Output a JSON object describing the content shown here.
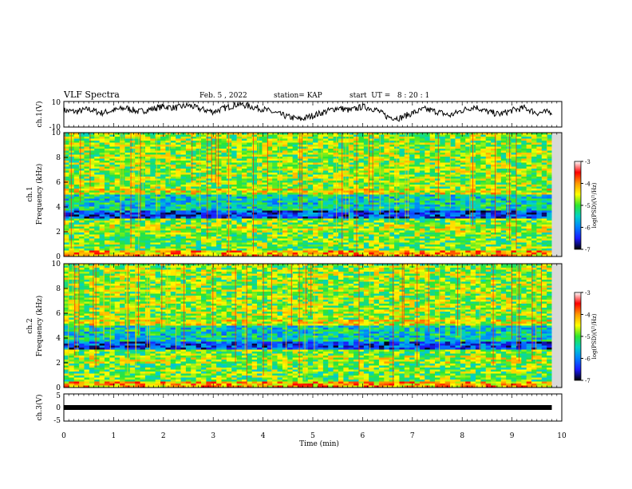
{
  "header": {
    "title": "VLF Spectra",
    "date": "Feb. 5 , 2022",
    "station": "station= KAP",
    "start": "start  UT =   8 : 20 : 1"
  },
  "colors": {
    "colormap": [
      "#000000",
      "#1a1aff",
      "#0080ff",
      "#00d2c8",
      "#2ee62e",
      "#ffff00",
      "#ff9900",
      "#ff0000",
      "#ffffff"
    ],
    "trace": "#000000"
  },
  "chart_data": [
    {
      "type": "line",
      "ylabel": "ch.1(V)",
      "ylim": [
        -10,
        10
      ],
      "yticks": [
        "10",
        "-10"
      ],
      "xlim": [
        0,
        10
      ],
      "series": [
        {
          "x": [
            0,
            0.25,
            0.5,
            0.75,
            1,
            1.25,
            1.5,
            1.75,
            2,
            2.25,
            2.5,
            2.75,
            3,
            3.25,
            3.5,
            3.75,
            4,
            4.25,
            4.5,
            4.75,
            5,
            5.25,
            5.5,
            5.75,
            6,
            6.25,
            6.5,
            6.75,
            7,
            7.25,
            7.5,
            7.75,
            8,
            8.25,
            8.5,
            8.75,
            9,
            9.25,
            9.5,
            9.8
          ],
          "values": [
            3,
            2,
            4,
            1,
            3,
            5,
            2,
            4,
            6,
            5,
            7,
            4,
            2,
            5,
            8,
            6,
            4,
            1,
            -2,
            -4,
            -1,
            2,
            5,
            3,
            6,
            4,
            -2,
            -3,
            1,
            4,
            2,
            -1,
            3,
            6,
            2,
            0,
            3,
            5,
            1,
            2
          ]
        }
      ]
    },
    {
      "type": "heatmap",
      "ylabel": "ch.1\nFrequency (kHz)",
      "ylim": [
        0,
        10
      ],
      "yticks": [
        "0",
        "2",
        "4",
        "6",
        "8",
        "10"
      ],
      "xlim": [
        0,
        10
      ],
      "colorbar": {
        "label": "log(PSD)(V²/Hz)",
        "ticks": [
          "-3",
          "-4",
          "-5",
          "-6",
          "-7"
        ],
        "range": [
          -7,
          -3
        ]
      }
    },
    {
      "type": "heatmap",
      "ylabel": "ch.2\nFrequency (kHz)",
      "ylim": [
        0,
        10
      ],
      "yticks": [
        "0",
        "2",
        "4",
        "6",
        "8",
        "10"
      ],
      "xlim": [
        0,
        10
      ],
      "colorbar": {
        "label": "log(PSD)(V²/Hz)",
        "ticks": [
          "-3",
          "-4",
          "-5",
          "-6",
          "-7"
        ],
        "range": [
          -7,
          -3
        ]
      }
    },
    {
      "type": "line",
      "ylabel": "ch.3(V)",
      "ylim": [
        -5,
        5
      ],
      "yticks": [
        "5",
        "0",
        "-5"
      ],
      "xlim": [
        0,
        10
      ],
      "xlabel": "Time (min)",
      "xticks": [
        "0",
        "1",
        "2",
        "3",
        "4",
        "5",
        "6",
        "7",
        "8",
        "9",
        "10"
      ],
      "series": [
        {
          "x": [
            0,
            9.8
          ],
          "values": [
            0,
            0
          ]
        }
      ]
    }
  ]
}
